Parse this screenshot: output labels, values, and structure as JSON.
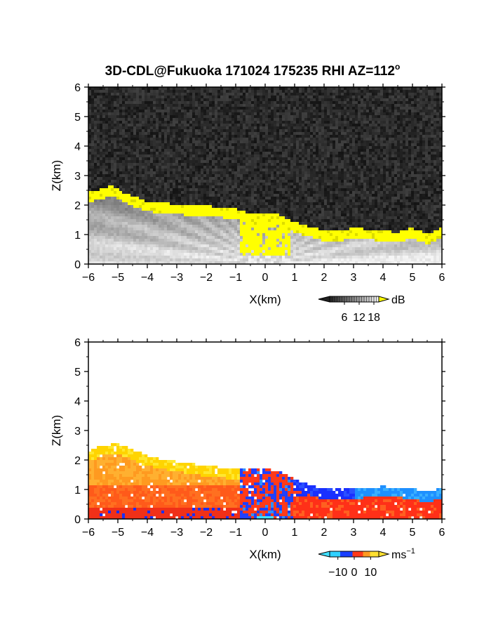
{
  "figure": {
    "title_main": "3D-CDL@Fukuoka 171024 175235 RHI AZ=112",
    "title_sup": "o"
  },
  "chart_data": [
    {
      "type": "heatmap",
      "name": "SNR",
      "xlabel": "X(km)",
      "ylabel": "Z(km)",
      "xlim": [
        -6,
        6
      ],
      "ylim": [
        0,
        6
      ],
      "xticks": [
        -6,
        -5,
        -4,
        -3,
        -2,
        -1,
        0,
        1,
        2,
        3,
        4,
        5,
        6
      ],
      "yticks": [
        0,
        1,
        2,
        3,
        4,
        5,
        6
      ],
      "colorbar": {
        "unit": "dB",
        "ticks": [
          6,
          12,
          18
        ],
        "range": [
          0,
          20
        ],
        "palette": "gray-to-yellow",
        "overflow_color": "#ffff00"
      },
      "cloud_base_km": [
        [
          -6.0,
          2.3
        ],
        [
          -5.5,
          2.45
        ],
        [
          -5.2,
          2.55
        ],
        [
          -4.8,
          2.3
        ],
        [
          -4.0,
          2.0
        ],
        [
          -3.0,
          1.9
        ],
        [
          -2.0,
          1.85
        ],
        [
          -1.5,
          1.8
        ],
        [
          -1.0,
          1.75
        ],
        [
          -0.5,
          1.6
        ],
        [
          0.0,
          1.6
        ],
        [
          0.5,
          1.55
        ],
        [
          1.0,
          1.3
        ],
        [
          1.5,
          1.15
        ],
        [
          2.0,
          1.0
        ],
        [
          2.5,
          1.0
        ],
        [
          3.0,
          1.1
        ],
        [
          3.5,
          1.05
        ],
        [
          4.0,
          1.0
        ],
        [
          4.5,
          0.95
        ],
        [
          5.0,
          1.1
        ],
        [
          5.5,
          0.9
        ],
        [
          6.0,
          1.1
        ]
      ]
    },
    {
      "type": "heatmap",
      "name": "Doppler velocity",
      "xlabel": "X(km)",
      "ylabel": "Z(km)",
      "xlim": [
        -6,
        6
      ],
      "ylim": [
        0,
        6
      ],
      "xticks": [
        -6,
        -5,
        -4,
        -3,
        -2,
        -1,
        0,
        1,
        2,
        3,
        4,
        5,
        6
      ],
      "yticks": [
        0,
        1,
        2,
        3,
        4,
        5,
        6
      ],
      "colorbar": {
        "unit": "ms",
        "unit_sup": "-1",
        "ticks": [
          -10,
          0,
          10
        ],
        "range": [
          -15,
          15
        ],
        "palette": "cyan-blue-red-yellow"
      },
      "echo_top_km": [
        [
          -6.0,
          2.3
        ],
        [
          -5.5,
          2.5
        ],
        [
          -5.0,
          2.55
        ],
        [
          -4.5,
          2.35
        ],
        [
          -4.0,
          2.15
        ],
        [
          -3.0,
          1.95
        ],
        [
          -2.0,
          1.8
        ],
        [
          -1.0,
          1.7
        ],
        [
          -0.5,
          1.7
        ],
        [
          0.0,
          1.7
        ],
        [
          0.5,
          1.6
        ],
        [
          1.0,
          1.35
        ],
        [
          1.5,
          1.15
        ],
        [
          2.0,
          1.0
        ],
        [
          3.0,
          1.05
        ],
        [
          4.0,
          1.1
        ],
        [
          5.0,
          1.05
        ],
        [
          5.5,
          0.9
        ],
        [
          6.0,
          1.05
        ]
      ]
    }
  ]
}
